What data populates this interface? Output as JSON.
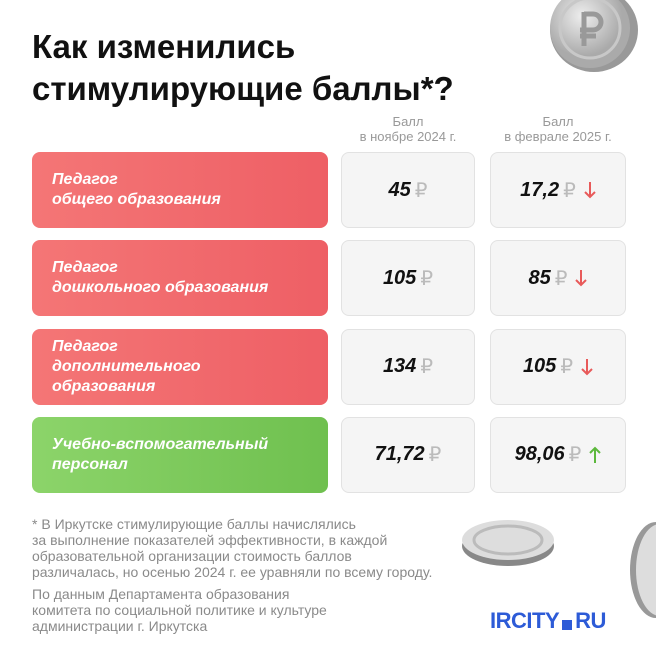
{
  "header": {
    "title": "Как изменились\nстимулирующие баллы*?"
  },
  "table": {
    "columns": [
      "Балл\nв ноябре 2024 г.",
      "Балл\nв феврале 2025 г."
    ],
    "currency": "₽",
    "rows": [
      {
        "label": "Педагог\nобщего образования",
        "nov": "45",
        "feb": "17,2",
        "trend": "down",
        "color": "red"
      },
      {
        "label": "Педагог\nдошкольного образования",
        "nov": "105",
        "feb": "85",
        "trend": "down",
        "color": "red"
      },
      {
        "label": "Педагог\nдополнительного образования",
        "nov": "134",
        "feb": "105",
        "trend": "down",
        "color": "red"
      },
      {
        "label": "Учебно-вспомогательный\nперсонал",
        "nov": "71,72",
        "feb": "98,06",
        "trend": "up",
        "color": "green"
      }
    ]
  },
  "footnote": "* В Иркутске стимулирующие баллы начислялись\nза выполнение показателей эффективности, в каждой\nобразовательной организации стоимость баллов\nразличалась, но осенью 2024 г. ее уравняли по всему городу.",
  "source": "По данным Департамента образования\nкомитета по социальной политике и культуре\nадминистрации г. Иркутска",
  "logo": {
    "name": "IRCITY",
    "domain": "RU"
  }
}
